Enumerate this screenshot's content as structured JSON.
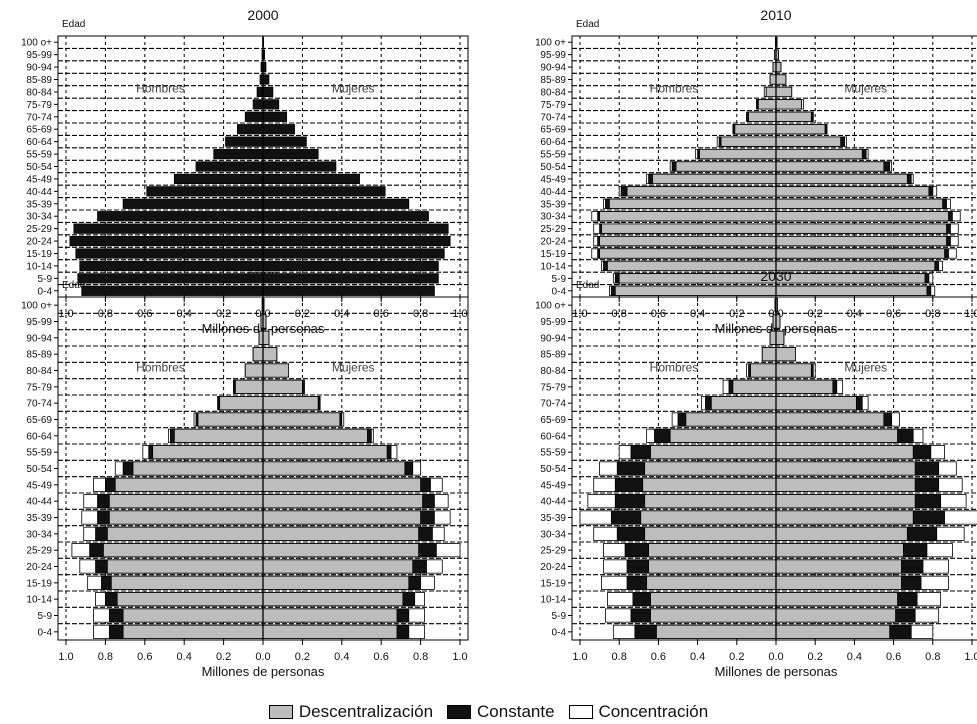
{
  "colors": {
    "descentralizacion": "#bdbdbd",
    "constante": "#111111",
    "concentracion": "#ffffff"
  },
  "legend": {
    "items": [
      {
        "label": "Descentralización",
        "color": "#bdbdbd"
      },
      {
        "label": "Constante",
        "color": "#111111"
      },
      {
        "label": "Concentración",
        "color": "#ffffff"
      }
    ]
  },
  "chart_data": [
    {
      "type": "bar",
      "orientation": "horizontal",
      "kind": "population-pyramid",
      "title": "2000",
      "ylabel": "Edad",
      "xlabel": "Millones de personas",
      "left_label": "Hombres",
      "right_label": "Mujeres",
      "xticks": [
        "1.0",
        "0.8",
        "0.6",
        "0.4",
        "0.2",
        "0.0",
        "0.2",
        "0.4",
        "0.6",
        "0.8",
        "1.0"
      ],
      "xlim": [
        -1.0,
        1.0
      ],
      "categories": [
        "0-4",
        "5-9",
        "10-14",
        "15-19",
        "20-24",
        "25-29",
        "30-34",
        "35-39",
        "40-44",
        "45-49",
        "50-54",
        "55-59",
        "60-64",
        "65-69",
        "70-74",
        "75-79",
        "80-84",
        "85-89",
        "90-94",
        "95-99",
        "100 o+"
      ],
      "series": [
        {
          "name": "Constante",
          "sex": "Hombres",
          "values": [
            0.92,
            0.94,
            0.93,
            0.95,
            0.98,
            0.96,
            0.84,
            0.71,
            0.59,
            0.45,
            0.34,
            0.25,
            0.19,
            0.13,
            0.09,
            0.05,
            0.03,
            0.015,
            0.01,
            0.005,
            0.002
          ]
        },
        {
          "name": "Constante",
          "sex": "Mujeres",
          "values": [
            0.87,
            0.89,
            0.89,
            0.92,
            0.95,
            0.94,
            0.84,
            0.74,
            0.62,
            0.49,
            0.37,
            0.28,
            0.22,
            0.16,
            0.12,
            0.08,
            0.05,
            0.03,
            0.015,
            0.008,
            0.003
          ]
        }
      ]
    },
    {
      "type": "bar",
      "orientation": "horizontal",
      "kind": "population-pyramid",
      "title": "2010",
      "ylabel": "Edad",
      "xlabel": "Millones de personas",
      "left_label": "Hombres",
      "right_label": "Mujeres",
      "xticks": [
        "1.0",
        "0.8",
        "0.6",
        "0.4",
        "0.2",
        "0.0",
        "0.2",
        "0.4",
        "0.6",
        "0.8",
        "1.0"
      ],
      "xlim": [
        -1.0,
        1.0
      ],
      "categories": [
        "0-4",
        "5-9",
        "10-14",
        "15-19",
        "20-24",
        "25-29",
        "30-34",
        "35-39",
        "40-44",
        "45-49",
        "50-54",
        "55-59",
        "60-64",
        "65-69",
        "70-74",
        "75-79",
        "80-84",
        "85-89",
        "90-94",
        "95-99",
        "100 o+"
      ],
      "series": [
        {
          "name": "Descentralización",
          "sex": "Hombres",
          "values": [
            0.82,
            0.8,
            0.86,
            0.9,
            0.9,
            0.89,
            0.9,
            0.85,
            0.76,
            0.63,
            0.51,
            0.39,
            0.28,
            0.21,
            0.14,
            0.09,
            0.05,
            0.03,
            0.015,
            0.008,
            0.003
          ]
        },
        {
          "name": "Constante",
          "sex": "Hombres",
          "values": [
            0.84,
            0.82,
            0.88,
            0.91,
            0.91,
            0.9,
            0.91,
            0.87,
            0.79,
            0.65,
            0.53,
            0.4,
            0.29,
            0.22,
            0.15,
            0.1,
            0.05,
            0.03,
            0.015,
            0.008,
            0.003
          ]
        },
        {
          "name": "Concentración",
          "sex": "Hombres",
          "values": [
            0.85,
            0.83,
            0.89,
            0.94,
            0.93,
            0.93,
            0.94,
            0.88,
            0.8,
            0.66,
            0.54,
            0.41,
            0.3,
            0.22,
            0.15,
            0.1,
            0.06,
            0.03,
            0.015,
            0.008,
            0.003
          ]
        },
        {
          "name": "Descentralización",
          "sex": "Mujeres",
          "values": [
            0.77,
            0.76,
            0.81,
            0.86,
            0.87,
            0.87,
            0.88,
            0.85,
            0.78,
            0.67,
            0.55,
            0.44,
            0.33,
            0.25,
            0.18,
            0.13,
            0.08,
            0.05,
            0.025,
            0.012,
            0.005
          ]
        },
        {
          "name": "Constante",
          "sex": "Mujeres",
          "values": [
            0.79,
            0.78,
            0.83,
            0.88,
            0.89,
            0.89,
            0.9,
            0.87,
            0.8,
            0.69,
            0.58,
            0.46,
            0.35,
            0.26,
            0.19,
            0.13,
            0.08,
            0.05,
            0.025,
            0.012,
            0.005
          ]
        },
        {
          "name": "Concentración",
          "sex": "Mujeres",
          "values": [
            0.81,
            0.8,
            0.85,
            0.92,
            0.93,
            0.93,
            0.94,
            0.89,
            0.82,
            0.7,
            0.59,
            0.47,
            0.36,
            0.26,
            0.19,
            0.14,
            0.08,
            0.05,
            0.025,
            0.012,
            0.005
          ]
        }
      ]
    },
    {
      "type": "bar",
      "orientation": "horizontal",
      "kind": "population-pyramid",
      "title": "2020",
      "ylabel": "Edad",
      "xlabel": "Millones de personas",
      "left_label": "Hombres",
      "right_label": "Mujeres",
      "xticks": [
        "1.0",
        "0.8",
        "0.6",
        "0.4",
        "0.2",
        "0.0",
        "0.2",
        "0.4",
        "0.6",
        "0.8",
        "1.0"
      ],
      "xlim": [
        -1.0,
        1.0
      ],
      "categories": [
        "0-4",
        "5-9",
        "10-14",
        "15-19",
        "20-24",
        "25-29",
        "30-34",
        "35-39",
        "40-44",
        "45-49",
        "50-54",
        "55-59",
        "60-64",
        "65-69",
        "70-74",
        "75-79",
        "80-84",
        "85-89",
        "90-94",
        "95-99",
        "100 o+"
      ],
      "series": [
        {
          "name": "Descentralización",
          "sex": "Hombres",
          "values": [
            0.71,
            0.71,
            0.74,
            0.77,
            0.79,
            0.81,
            0.79,
            0.78,
            0.78,
            0.75,
            0.66,
            0.56,
            0.45,
            0.33,
            0.22,
            0.14,
            0.09,
            0.05,
            0.02,
            0.01,
            0.004
          ]
        },
        {
          "name": "Constante",
          "sex": "Hombres",
          "values": [
            0.78,
            0.78,
            0.8,
            0.82,
            0.85,
            0.88,
            0.85,
            0.84,
            0.84,
            0.8,
            0.71,
            0.58,
            0.47,
            0.34,
            0.23,
            0.15,
            0.09,
            0.05,
            0.02,
            0.01,
            0.004
          ]
        },
        {
          "name": "Concentración",
          "sex": "Hombres",
          "values": [
            0.86,
            0.86,
            0.85,
            0.89,
            0.93,
            0.97,
            0.91,
            0.92,
            0.91,
            0.86,
            0.75,
            0.61,
            0.48,
            0.35,
            0.23,
            0.15,
            0.09,
            0.05,
            0.02,
            0.01,
            0.004
          ]
        },
        {
          "name": "Descentralización",
          "sex": "Mujeres",
          "values": [
            0.68,
            0.68,
            0.71,
            0.74,
            0.76,
            0.79,
            0.79,
            0.8,
            0.81,
            0.8,
            0.72,
            0.63,
            0.53,
            0.39,
            0.28,
            0.2,
            0.13,
            0.07,
            0.03,
            0.015,
            0.005
          ]
        },
        {
          "name": "Constante",
          "sex": "Mujeres",
          "values": [
            0.74,
            0.74,
            0.77,
            0.8,
            0.83,
            0.88,
            0.86,
            0.87,
            0.87,
            0.85,
            0.76,
            0.65,
            0.55,
            0.4,
            0.29,
            0.21,
            0.13,
            0.07,
            0.03,
            0.015,
            0.005
          ]
        },
        {
          "name": "Concentración",
          "sex": "Mujeres",
          "values": [
            0.82,
            0.82,
            0.82,
            0.87,
            0.91,
            1.0,
            0.92,
            0.95,
            0.94,
            0.91,
            0.8,
            0.68,
            0.56,
            0.41,
            0.29,
            0.21,
            0.13,
            0.07,
            0.03,
            0.015,
            0.005
          ]
        }
      ]
    },
    {
      "type": "bar",
      "orientation": "horizontal",
      "kind": "population-pyramid",
      "title": "2030",
      "ylabel": "Edad",
      "xlabel": "Millones de personas",
      "left_label": "Hombres",
      "right_label": "Mujeres",
      "xticks": [
        "1.0",
        "0.8",
        "0.6",
        "0.4",
        "0.2",
        "0.0",
        "0.2",
        "0.4",
        "0.6",
        "0.8",
        "1.0"
      ],
      "xlim": [
        -1.0,
        1.0
      ],
      "categories": [
        "0-4",
        "5-9",
        "10-14",
        "15-19",
        "20-24",
        "25-29",
        "30-34",
        "35-39",
        "40-44",
        "45-49",
        "50-54",
        "55-59",
        "60-64",
        "65-69",
        "70-74",
        "75-79",
        "80-84",
        "85-89",
        "90-94",
        "95-99",
        "100 o+"
      ],
      "series": [
        {
          "name": "Descentralización",
          "sex": "Hombres",
          "values": [
            0.61,
            0.64,
            0.64,
            0.66,
            0.65,
            0.65,
            0.67,
            0.69,
            0.67,
            0.68,
            0.67,
            0.64,
            0.54,
            0.46,
            0.33,
            0.22,
            0.13,
            0.07,
            0.03,
            0.015,
            0.005
          ]
        },
        {
          "name": "Constante",
          "sex": "Hombres",
          "values": [
            0.72,
            0.74,
            0.73,
            0.76,
            0.76,
            0.77,
            0.81,
            0.84,
            0.82,
            0.82,
            0.81,
            0.74,
            0.62,
            0.5,
            0.36,
            0.24,
            0.14,
            0.07,
            0.03,
            0.015,
            0.005
          ]
        },
        {
          "name": "Concentración",
          "sex": "Hombres",
          "values": [
            0.83,
            0.87,
            0.86,
            0.89,
            0.88,
            0.88,
            0.93,
            1.0,
            0.96,
            0.93,
            0.9,
            0.8,
            0.66,
            0.53,
            0.38,
            0.27,
            0.15,
            0.07,
            0.03,
            0.015,
            0.005
          ]
        },
        {
          "name": "Descentralización",
          "sex": "Mujeres",
          "values": [
            0.58,
            0.61,
            0.62,
            0.64,
            0.64,
            0.65,
            0.67,
            0.7,
            0.71,
            0.71,
            0.71,
            0.7,
            0.62,
            0.55,
            0.41,
            0.29,
            0.18,
            0.1,
            0.04,
            0.02,
            0.008
          ]
        },
        {
          "name": "Constante",
          "sex": "Mujeres",
          "values": [
            0.69,
            0.71,
            0.72,
            0.74,
            0.75,
            0.77,
            0.82,
            0.86,
            0.84,
            0.83,
            0.83,
            0.79,
            0.7,
            0.59,
            0.44,
            0.31,
            0.19,
            0.1,
            0.04,
            0.02,
            0.008
          ]
        },
        {
          "name": "Concentración",
          "sex": "Mujeres",
          "values": [
            0.8,
            0.83,
            0.84,
            0.88,
            0.88,
            0.9,
            0.96,
            1.03,
            0.97,
            0.95,
            0.92,
            0.86,
            0.75,
            0.63,
            0.47,
            0.34,
            0.2,
            0.1,
            0.04,
            0.02,
            0.008
          ]
        }
      ]
    }
  ]
}
